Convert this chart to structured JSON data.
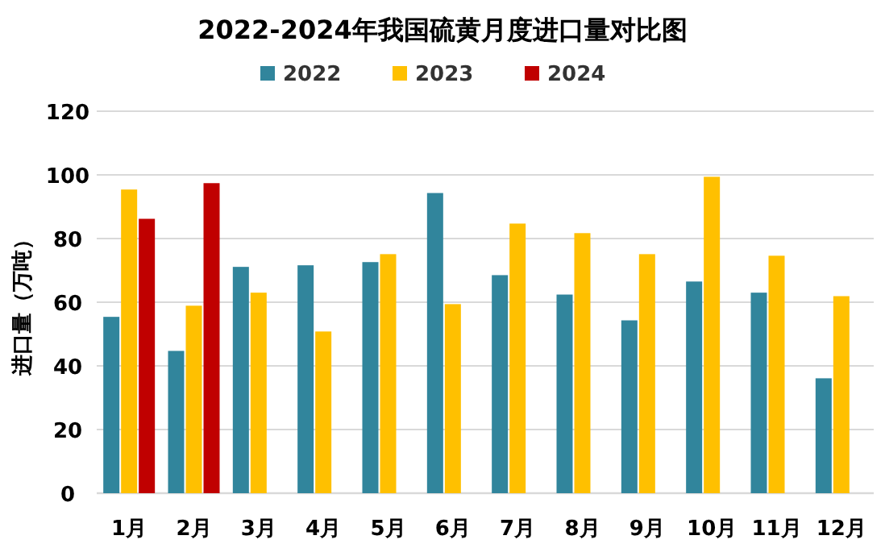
{
  "chart_data": {
    "type": "bar",
    "title": "2022-2024年我国硫黄月度进口量对比图",
    "ylabel": "进口量（万吨）",
    "categories": [
      "1月",
      "2月",
      "3月",
      "4月",
      "5月",
      "6月",
      "7月",
      "8月",
      "9月",
      "10月",
      "11月",
      "12月"
    ],
    "series": [
      {
        "name": "2022",
        "color": "#31859c",
        "values": [
          55.4,
          44.7,
          71.1,
          71.6,
          72.6,
          94.3,
          68.5,
          62.4,
          54.3,
          66.5,
          63.0,
          36.1
        ]
      },
      {
        "name": "2023",
        "color": "#ffc000",
        "values": [
          95.4,
          58.9,
          63.0,
          50.8,
          75.1,
          59.4,
          84.7,
          81.7,
          75.1,
          99.4,
          74.6,
          61.9
        ]
      },
      {
        "name": "2024",
        "color": "#c00000",
        "values": [
          86.2,
          97.4,
          null,
          null,
          null,
          null,
          null,
          null,
          null,
          null,
          null,
          null
        ]
      }
    ],
    "ylim": [
      0,
      120
    ],
    "yticks": [
      0,
      20,
      40,
      60,
      80,
      100,
      120
    ],
    "grid": "y",
    "legend": "top"
  }
}
